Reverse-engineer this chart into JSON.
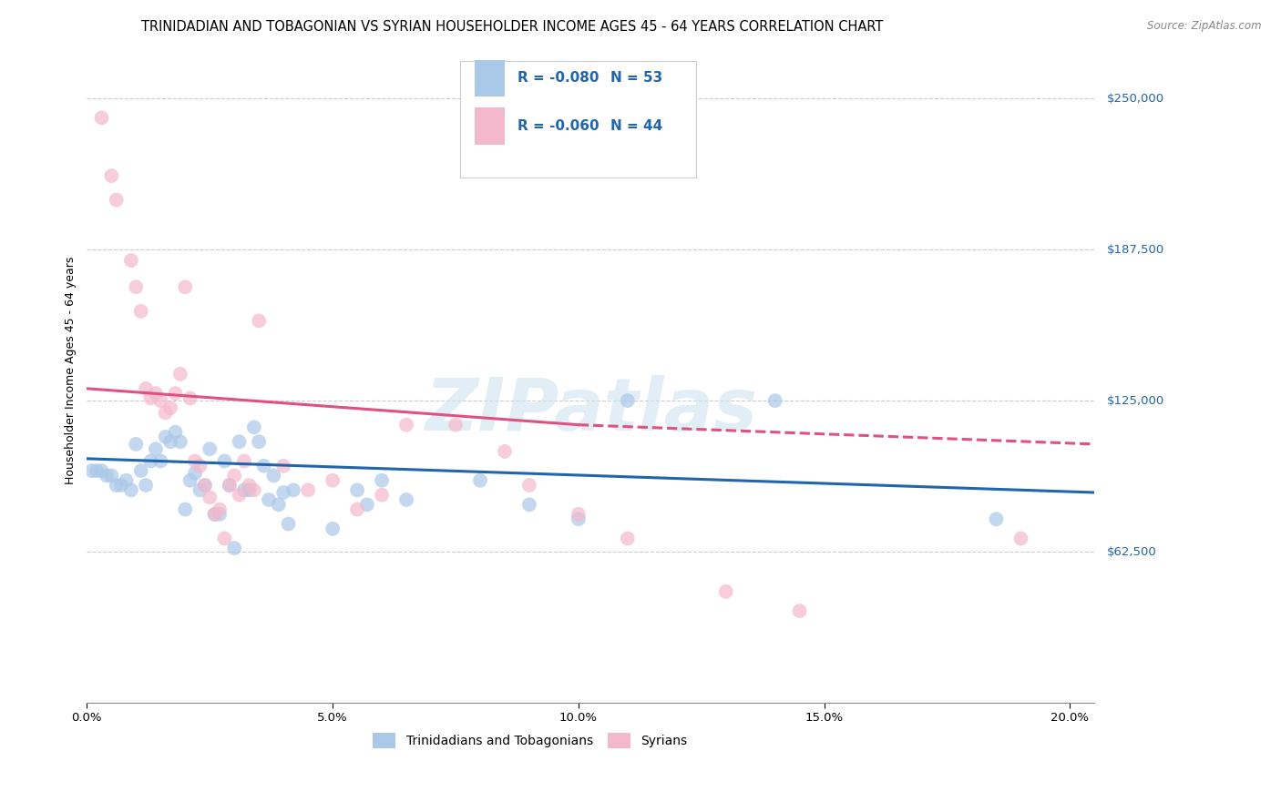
{
  "title": "TRINIDADIAN AND TOBAGONIAN VS SYRIAN HOUSEHOLDER INCOME AGES 45 - 64 YEARS CORRELATION CHART",
  "source": "Source: ZipAtlas.com",
  "ylabel": "Householder Income Ages 45 - 64 years",
  "x_tick_labels": [
    "0.0%",
    "",
    "",
    "",
    "",
    "5.0%",
    "",
    "",
    "",
    "",
    "10.0%",
    "",
    "",
    "",
    "",
    "15.0%",
    "",
    "",
    "",
    "",
    "20.0%"
  ],
  "x_tick_positions": [
    0.0,
    0.01,
    0.02,
    0.03,
    0.04,
    0.05,
    0.06,
    0.07,
    0.08,
    0.09,
    0.1,
    0.11,
    0.12,
    0.13,
    0.14,
    0.15,
    0.16,
    0.17,
    0.18,
    0.19,
    0.2
  ],
  "y_tick_labels": [
    "$62,500",
    "$125,000",
    "$187,500",
    "$250,000"
  ],
  "y_tick_values": [
    62500,
    125000,
    187500,
    250000
  ],
  "xlim": [
    0.0,
    0.205
  ],
  "ylim": [
    0,
    275000
  ],
  "legend_labels": [
    "Trinidadians and Tobagonians",
    "Syrians"
  ],
  "legend_R_N": [
    {
      "R": "-0.080",
      "N": "53",
      "color": "#aac8e8"
    },
    {
      "R": "-0.060",
      "N": "44",
      "color": "#f4b8cc"
    }
  ],
  "blue_marker_color": "#aac8e8",
  "pink_marker_color": "#f4b8cc",
  "blue_line_color": "#2166ac",
  "pink_line_color": "#e05080",
  "watermark_text": "ZIPatlas",
  "title_fontsize": 10.5,
  "axis_label_fontsize": 9,
  "tick_fontsize": 9.5,
  "right_label_color": "#2166ac",
  "blue_scatter": [
    [
      0.001,
      96000
    ],
    [
      0.002,
      96000
    ],
    [
      0.003,
      96000
    ],
    [
      0.004,
      94000
    ],
    [
      0.005,
      94000
    ],
    [
      0.006,
      90000
    ],
    [
      0.007,
      90000
    ],
    [
      0.008,
      92000
    ],
    [
      0.009,
      88000
    ],
    [
      0.01,
      107000
    ],
    [
      0.011,
      96000
    ],
    [
      0.012,
      90000
    ],
    [
      0.013,
      100000
    ],
    [
      0.014,
      105000
    ],
    [
      0.015,
      100000
    ],
    [
      0.016,
      110000
    ],
    [
      0.017,
      108000
    ],
    [
      0.018,
      112000
    ],
    [
      0.019,
      108000
    ],
    [
      0.02,
      80000
    ],
    [
      0.021,
      92000
    ],
    [
      0.022,
      95000
    ],
    [
      0.023,
      88000
    ],
    [
      0.024,
      90000
    ],
    [
      0.025,
      105000
    ],
    [
      0.026,
      78000
    ],
    [
      0.027,
      78000
    ],
    [
      0.028,
      100000
    ],
    [
      0.029,
      90000
    ],
    [
      0.03,
      64000
    ],
    [
      0.031,
      108000
    ],
    [
      0.032,
      88000
    ],
    [
      0.033,
      88000
    ],
    [
      0.034,
      114000
    ],
    [
      0.035,
      108000
    ],
    [
      0.036,
      98000
    ],
    [
      0.037,
      84000
    ],
    [
      0.038,
      94000
    ],
    [
      0.039,
      82000
    ],
    [
      0.04,
      87000
    ],
    [
      0.041,
      74000
    ],
    [
      0.042,
      88000
    ],
    [
      0.05,
      72000
    ],
    [
      0.055,
      88000
    ],
    [
      0.057,
      82000
    ],
    [
      0.06,
      92000
    ],
    [
      0.065,
      84000
    ],
    [
      0.08,
      92000
    ],
    [
      0.09,
      82000
    ],
    [
      0.1,
      76000
    ],
    [
      0.11,
      125000
    ],
    [
      0.14,
      125000
    ],
    [
      0.185,
      76000
    ]
  ],
  "pink_scatter": [
    [
      0.003,
      242000
    ],
    [
      0.005,
      218000
    ],
    [
      0.006,
      208000
    ],
    [
      0.009,
      183000
    ],
    [
      0.01,
      172000
    ],
    [
      0.011,
      162000
    ],
    [
      0.012,
      130000
    ],
    [
      0.013,
      126000
    ],
    [
      0.014,
      128000
    ],
    [
      0.015,
      125000
    ],
    [
      0.016,
      120000
    ],
    [
      0.017,
      122000
    ],
    [
      0.018,
      128000
    ],
    [
      0.019,
      136000
    ],
    [
      0.02,
      172000
    ],
    [
      0.021,
      126000
    ],
    [
      0.022,
      100000
    ],
    [
      0.023,
      98000
    ],
    [
      0.024,
      90000
    ],
    [
      0.025,
      85000
    ],
    [
      0.026,
      78000
    ],
    [
      0.027,
      80000
    ],
    [
      0.028,
      68000
    ],
    [
      0.029,
      90000
    ],
    [
      0.03,
      94000
    ],
    [
      0.031,
      86000
    ],
    [
      0.032,
      100000
    ],
    [
      0.033,
      90000
    ],
    [
      0.034,
      88000
    ],
    [
      0.035,
      158000
    ],
    [
      0.04,
      98000
    ],
    [
      0.045,
      88000
    ],
    [
      0.05,
      92000
    ],
    [
      0.055,
      80000
    ],
    [
      0.06,
      86000
    ],
    [
      0.065,
      115000
    ],
    [
      0.075,
      115000
    ],
    [
      0.085,
      104000
    ],
    [
      0.09,
      90000
    ],
    [
      0.1,
      78000
    ],
    [
      0.11,
      68000
    ],
    [
      0.13,
      46000
    ],
    [
      0.145,
      38000
    ],
    [
      0.19,
      68000
    ]
  ],
  "blue_line": {
    "x": [
      0.0,
      0.205
    ],
    "y": [
      101000,
      87000
    ]
  },
  "pink_line_solid": {
    "x": [
      0.0,
      0.1
    ],
    "y": [
      130000,
      115000
    ]
  },
  "pink_line_dash": {
    "x": [
      0.1,
      0.205
    ],
    "y": [
      115000,
      107000
    ]
  }
}
